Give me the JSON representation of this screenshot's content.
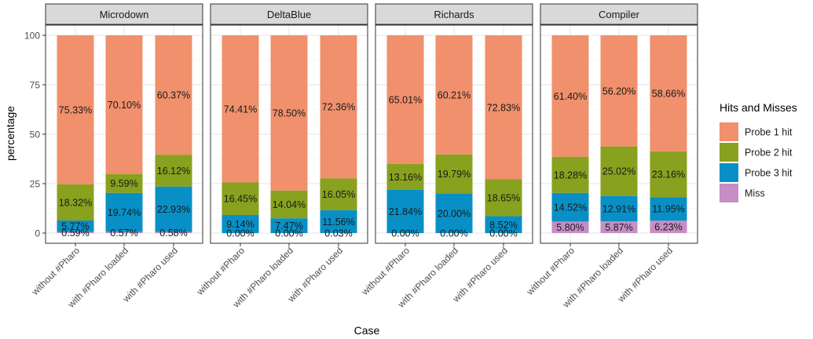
{
  "chart_data": {
    "type": "bar",
    "stacked": true,
    "xlabel": "Case",
    "ylabel": "percentage",
    "ylim": [
      0,
      100
    ],
    "yticks": [
      0,
      25,
      50,
      75,
      100
    ],
    "grid": true,
    "legend_position": "right",
    "categories": [
      "without #Pharo",
      "with #Pharo loaded",
      "with #Pharo used"
    ],
    "legend": {
      "title": "Hits and Misses",
      "items": [
        {
          "name": "Probe 1 hit",
          "color": "#f0906c"
        },
        {
          "name": "Probe 2 hit",
          "color": "#88a11e"
        },
        {
          "name": "Probe 3 hit",
          "color": "#0890c6"
        },
        {
          "name": "Miss",
          "color": "#c58ec5"
        }
      ]
    },
    "panels": [
      {
        "title": "Microdown",
        "bars": [
          {
            "miss": 0.59,
            "p3": 5.77,
            "p2": 18.32,
            "p1": 75.33,
            "labels": {
              "miss": "0.59%",
              "p3": "5.77%",
              "p2": "18.32%",
              "p1": "75.33%"
            }
          },
          {
            "miss": 0.57,
            "p3": 19.74,
            "p2": 9.59,
            "p1": 70.1,
            "labels": {
              "miss": "0.57%",
              "p3": "19.74%",
              "p2": "9.59%",
              "p1": "70.10%"
            }
          },
          {
            "miss": 0.58,
            "p3": 22.93,
            "p2": 16.12,
            "p1": 60.37,
            "labels": {
              "miss": "0.58%",
              "p3": "22.93%",
              "p2": "16.12%",
              "p1": "60.37%"
            }
          }
        ]
      },
      {
        "title": "DeltaBlue",
        "bars": [
          {
            "miss": 0.0,
            "p3": 9.14,
            "p2": 16.45,
            "p1": 74.41,
            "labels": {
              "miss": "0.00%",
              "p3": "9.14%",
              "p2": "16.45%",
              "p1": "74.41%"
            }
          },
          {
            "miss": 0.0,
            "p3": 7.47,
            "p2": 14.04,
            "p1": 78.5,
            "labels": {
              "miss": "0.00%",
              "p3": "7.47%",
              "p2": "14.04%",
              "p1": "78.50%"
            }
          },
          {
            "miss": 0.03,
            "p3": 11.56,
            "p2": 16.05,
            "p1": 72.36,
            "labels": {
              "miss": "0.03%",
              "p3": "11.56%",
              "p2": "16.05%",
              "p1": "72.36%"
            }
          }
        ]
      },
      {
        "title": "Richards",
        "bars": [
          {
            "miss": 0.0,
            "p3": 21.84,
            "p2": 13.16,
            "p1": 65.01,
            "labels": {
              "miss": "0.00%",
              "p3": "21.84%",
              "p2": "13.16%",
              "p1": "65.01%"
            }
          },
          {
            "miss": 0.0,
            "p3": 20.0,
            "p2": 19.79,
            "p1": 60.21,
            "labels": {
              "miss": "0.00%",
              "p3": "20.00%",
              "p2": "19.79%",
              "p1": "60.21%"
            }
          },
          {
            "miss": 0.0,
            "p3": 8.52,
            "p2": 18.65,
            "p1": 72.83,
            "labels": {
              "miss": "0.00%",
              "p3": "8.52%",
              "p2": "18.65%",
              "p1": "72.83%"
            }
          }
        ]
      },
      {
        "title": "Compiler",
        "bars": [
          {
            "miss": 5.8,
            "p3": 14.52,
            "p2": 18.28,
            "p1": 61.4,
            "labels": {
              "miss": "5.80%",
              "p3": "14.52%",
              "p2": "18.28%",
              "p1": "61.40%"
            }
          },
          {
            "miss": 5.87,
            "p3": 12.91,
            "p2": 25.02,
            "p1": 56.2,
            "labels": {
              "miss": "5.87%",
              "p3": "12.91%",
              "p2": "25.02%",
              "p1": "56.20%"
            }
          },
          {
            "miss": 6.23,
            "p3": 11.95,
            "p2": 23.16,
            "p1": 58.66,
            "labels": {
              "miss": "6.23%",
              "p3": "11.95%",
              "p2": "23.16%",
              "p1": "58.66%"
            }
          }
        ]
      }
    ]
  }
}
